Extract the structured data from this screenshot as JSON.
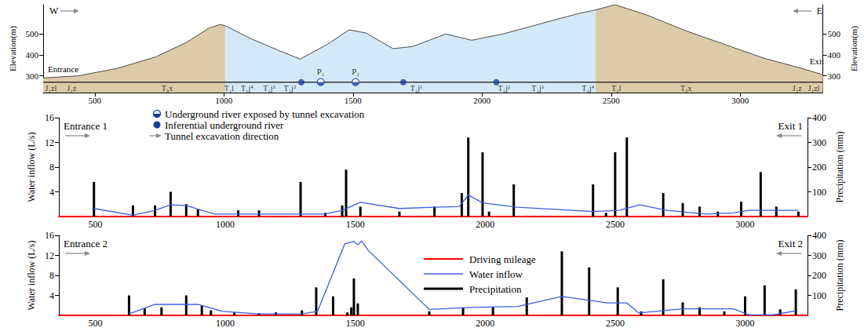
{
  "chart_data": [
    {
      "type": "section",
      "direction_labels": {
        "west": "W",
        "east": "E"
      },
      "portal_labels": {
        "entrance": "Entrance",
        "exit": "Exit"
      },
      "ylabel": "Elevation(m)",
      "y2label": "Elevation(m)",
      "xlim": [
        300,
        3320
      ],
      "xticks": [
        500,
        1000,
        1500,
        2000,
        2500,
        3000
      ],
      "ylim": [
        220,
        640
      ],
      "yticks": [
        300,
        400,
        500
      ],
      "y2lim": [
        220,
        640
      ],
      "y2ticks": [
        300,
        400,
        500
      ],
      "grid": false,
      "legend": "bottom",
      "profile": {
        "x": [
          300,
          435,
          585,
          735,
          855,
          945,
          985,
          1005,
          1100,
          1205,
          1295,
          1400,
          1485,
          1550,
          1655,
          1730,
          1860,
          1960,
          2080,
          2245,
          2365,
          2440,
          2515,
          2640,
          2790,
          2940,
          3090,
          3240,
          3320
        ],
        "elevation": [
          290,
          300,
          335,
          390,
          460,
          530,
          545,
          540,
          480,
          425,
          380,
          450,
          520,
          505,
          430,
          440,
          500,
          470,
          500,
          555,
          595,
          615,
          640,
          590,
          515,
          450,
          385,
          335,
          305
        ]
      },
      "zones": [
        {
          "from": 300,
          "to": 1005,
          "color": "#dccba8"
        },
        {
          "from": 1005,
          "to": 2440,
          "color": "#d4e9f7"
        },
        {
          "from": 2440,
          "to": 3320,
          "color": "#dccba8"
        }
      ],
      "tunnel_elevation": 270,
      "formations": [
        {
          "label": "J₁zl",
          "x": 330
        },
        {
          "label": "J₁z",
          "x": 410
        },
        {
          "label": "T₃x",
          "x": 780
        },
        {
          "label": "T₁l",
          "x": 1020
        },
        {
          "label": "T₁j⁴",
          "x": 1090
        },
        {
          "label": "T₁j³",
          "x": 1175
        },
        {
          "label": "T₁j²",
          "x": 1255
        },
        {
          "label": "T₁j¹",
          "x": 1745
        },
        {
          "label": "T₁j²",
          "x": 2085
        },
        {
          "label": "T₁j³",
          "x": 2215
        },
        {
          "label": "T₁j⁴",
          "x": 2410
        },
        {
          "label": "T₂l",
          "x": 2520
        },
        {
          "label": "T₃x",
          "x": 2790
        },
        {
          "label": "J₁z",
          "x": 3220
        },
        {
          "label": "J₁zl",
          "x": 3285
        }
      ],
      "series": [
        {
          "name": "Underground river exposed by tunnel excavation",
          "marker": "half-filled circle",
          "color": "#1a3fa0",
          "points": [
            {
              "label": "P₁",
              "x": 1375
            },
            {
              "label": "P₂",
              "x": 1510
            }
          ]
        },
        {
          "name": "Inferential underground river",
          "marker": "circle",
          "color": "#1a3fa0",
          "points": [
            {
              "x": 1300
            },
            {
              "x": 1695
            },
            {
              "x": 2055
            }
          ]
        }
      ],
      "arrow_legend": "Tunnel excavation direction"
    },
    {
      "type": "bar_line",
      "start_label": "Entrance 1",
      "end_label": "Exit 1",
      "xlim": [
        360,
        3240
      ],
      "xticks": [
        500,
        1000,
        1500,
        2000,
        2500,
        3000
      ],
      "ylabel": "Water inflow (L/s)",
      "ylim": [
        0,
        16
      ],
      "yticks": [
        4,
        8,
        12,
        16
      ],
      "y2label": "Precipitation (mm)",
      "y2lim": [
        0,
        400
      ],
      "y2ticks": [
        100,
        200,
        300,
        400
      ],
      "grid": false,
      "baseline": {
        "color": "#ff0000"
      },
      "series": [
        {
          "name": "Precipitation",
          "type": "bar",
          "color": "#000000",
          "axis": "y2",
          "x": [
            495,
            645,
            730,
            790,
            850,
            895,
            1050,
            1130,
            1290,
            1385,
            1450,
            1465,
            1520,
            1670,
            1805,
            1910,
            1935,
            1990,
            2015,
            2110,
            2415,
            2465,
            2500,
            2545,
            2685,
            2760,
            2825,
            2895,
            2985,
            3060,
            3120,
            3205
          ],
          "values": [
            140,
            45,
            45,
            100,
            50,
            30,
            25,
            25,
            140,
            15,
            45,
            190,
            40,
            20,
            40,
            95,
            320,
            260,
            20,
            130,
            130,
            15,
            260,
            320,
            95,
            55,
            40,
            20,
            60,
            180,
            40,
            20
          ]
        },
        {
          "name": "Water inflow",
          "type": "line",
          "color": "#3d5ce0",
          "x": [
            495,
            645,
            730,
            790,
            850,
            895,
            960,
            1130,
            1290,
            1385,
            1450,
            1520,
            1670,
            1805,
            1900,
            1935,
            1990,
            2125,
            2415,
            2515,
            2595,
            2700,
            2850,
            2955,
            3015,
            3205
          ],
          "values": [
            1.3,
            0.2,
            1.0,
            1.9,
            1.8,
            1.2,
            0.4,
            0.4,
            0.4,
            0.4,
            1.0,
            2.3,
            1.3,
            1.5,
            1.6,
            3.5,
            2.2,
            1.5,
            0.8,
            1.0,
            1.9,
            1.0,
            0.4,
            0.6,
            1.0,
            1.0
          ]
        }
      ]
    },
    {
      "type": "bar_line",
      "start_label": "Entrance 2",
      "end_label": "Exit 2",
      "xlim": [
        360,
        3240
      ],
      "xticks": [
        500,
        1000,
        1500,
        2000,
        2500,
        3000
      ],
      "ylabel": "Water inflow (L/s)",
      "ylim": [
        0,
        16
      ],
      "yticks": [
        4,
        8,
        12,
        16
      ],
      "y2label": "Precipitation (mm)",
      "y2lim": [
        0,
        400
      ],
      "y2ticks": [
        100,
        200,
        300,
        400
      ],
      "grid": false,
      "legend": "center",
      "baseline": {
        "name": "Driving mileage",
        "color": "#ff0000"
      },
      "series": [
        {
          "name": "Precipitation",
          "type": "bar",
          "color": "#000000",
          "axis": "y2",
          "x": [
            630,
            690,
            755,
            850,
            910,
            945,
            1035,
            1130,
            1195,
            1295,
            1350,
            1415,
            1470,
            1485,
            1495,
            1510,
            1785,
            1915,
            2030,
            2160,
            2295,
            2400,
            2510,
            2600,
            2685,
            2760,
            2825,
            2920,
            3000,
            3075,
            3135,
            3195
          ],
          "values": [
            100,
            35,
            40,
            100,
            50,
            25,
            15,
            10,
            15,
            25,
            140,
            95,
            15,
            40,
            185,
            60,
            20,
            40,
            40,
            90,
            320,
            240,
            140,
            20,
            180,
            65,
            40,
            20,
            95,
            150,
            30,
            130
          ]
        },
        {
          "name": "Water inflow",
          "type": "line",
          "color": "#3d5ce0",
          "x": [
            630,
            730,
            895,
            990,
            1130,
            1295,
            1355,
            1460,
            1495,
            1510,
            1525,
            1550,
            1785,
            1945,
            2125,
            2295,
            2470,
            2545,
            2590,
            2760,
            2955,
            3015,
            3105,
            3195
          ],
          "values": [
            0.3,
            2.2,
            2.2,
            0.8,
            0.3,
            0.3,
            0.8,
            14.3,
            14.8,
            14.1,
            14.9,
            13.0,
            1.2,
            1.6,
            1.8,
            3.8,
            2.5,
            2.5,
            0.5,
            1.3,
            1.3,
            0.1,
            0.1,
            0.9
          ]
        }
      ]
    }
  ]
}
